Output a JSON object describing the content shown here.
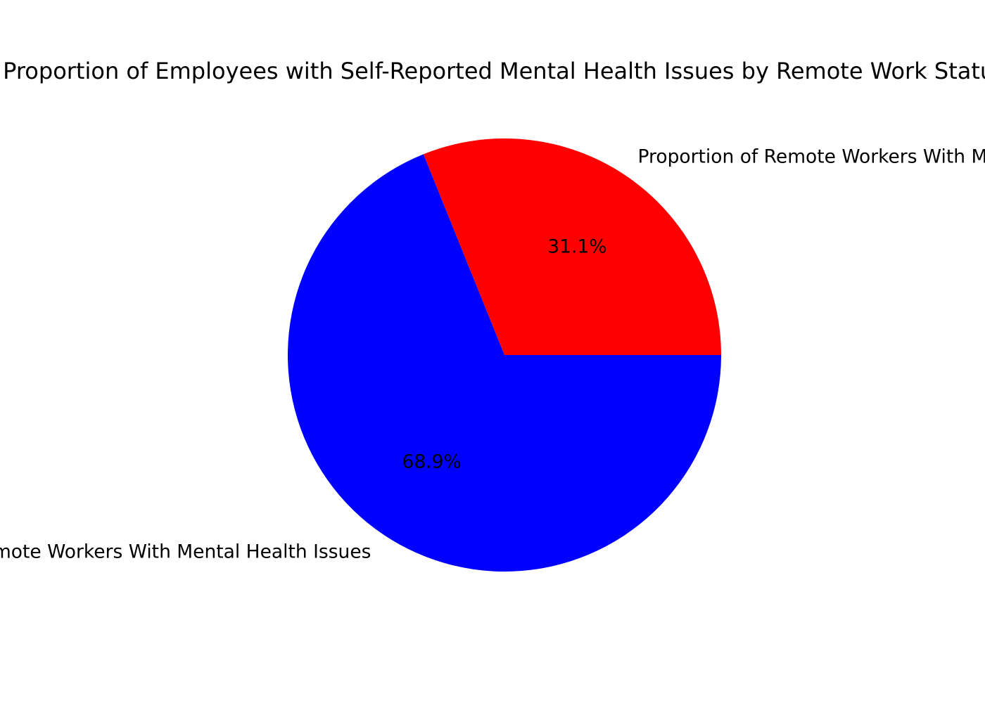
{
  "chart_data": {
    "type": "pie",
    "title": "Proportion of Employees with Self-Reported Mental Health Issues by Remote Work Status",
    "slices": [
      {
        "label": "Proportion of Remote Workers With Mental Health Issues",
        "value": 31.1,
        "pct_label": "31.1%",
        "color": "#ff0000"
      },
      {
        "label": "Proportion of Non-Remote Workers With Mental Health Issues",
        "value": 68.9,
        "pct_label": "68.9%",
        "color": "#0000ff"
      }
    ],
    "start_angle_deg": 0,
    "direction": "counterclockwise",
    "legend": "none"
  }
}
